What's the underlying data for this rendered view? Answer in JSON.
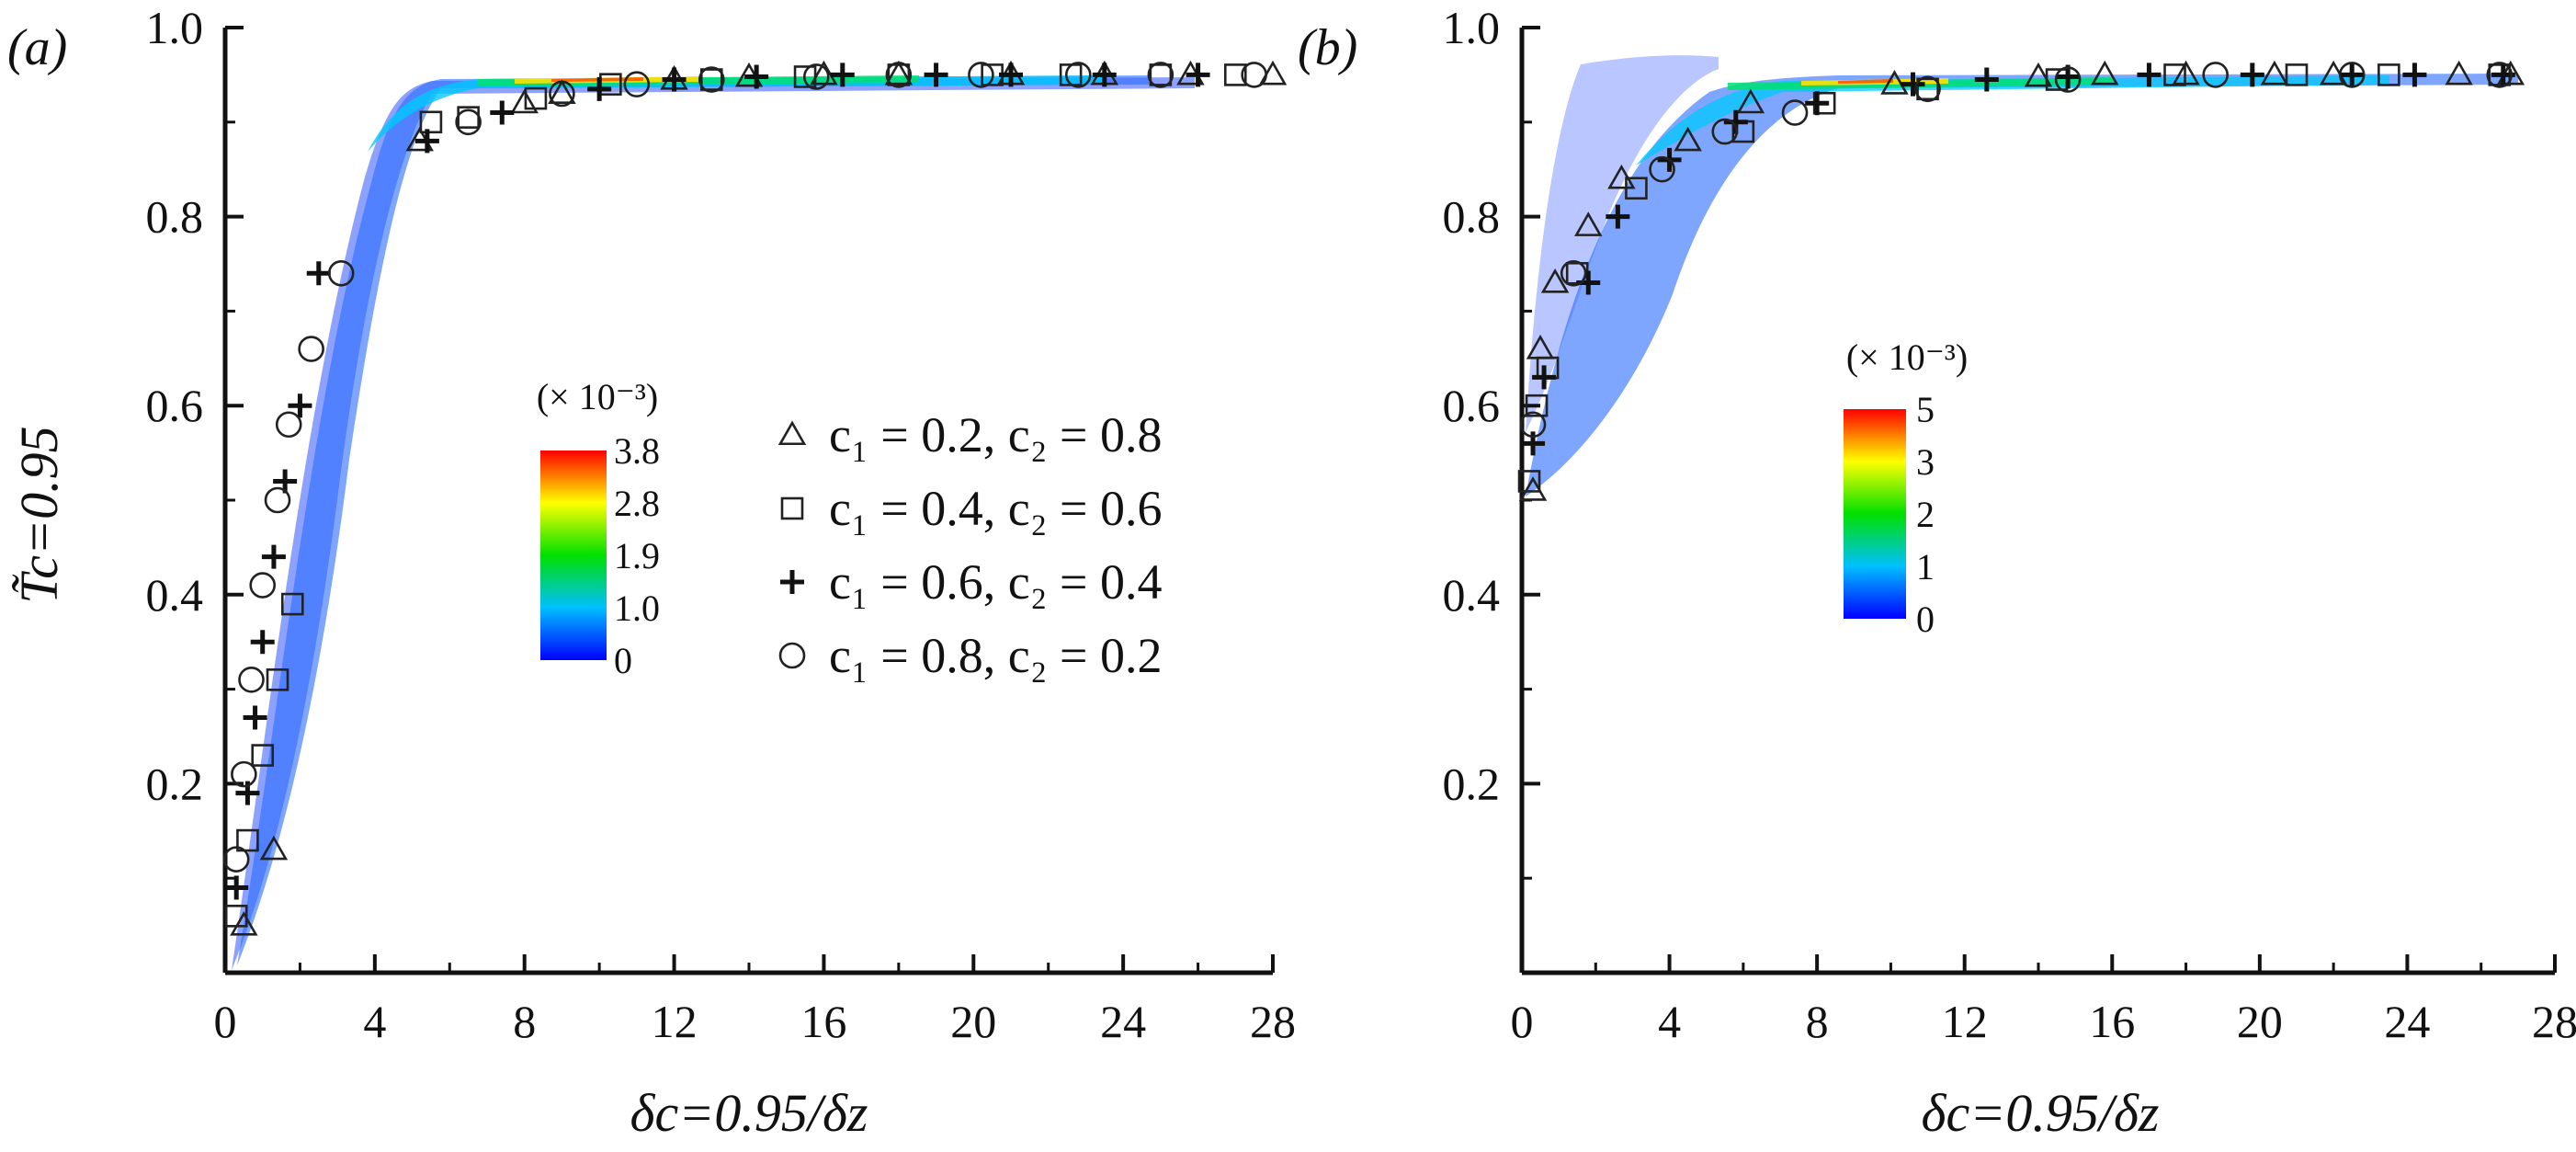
{
  "chart_data": [
    {
      "panel": "(a)",
      "type": "scatter",
      "xlabel": "δc=0.95/δz",
      "ylabel": "T̃c=0.95",
      "xlim": [
        0,
        28
      ],
      "ylim": [
        0,
        1.0
      ],
      "xticks": [
        0,
        4,
        8,
        12,
        16,
        20,
        24,
        28
      ],
      "yticks": [
        0.2,
        0.4,
        0.6,
        0.8,
        1.0
      ],
      "xtick_labels": [
        "0",
        "4",
        "8",
        "12",
        "16",
        "20",
        "24",
        "28"
      ],
      "ytick_labels": [
        "0.2",
        "0.4",
        "0.6",
        "0.8",
        "1.0"
      ],
      "colorbar": {
        "title": "(× 10⁻³)",
        "labels": [
          "3.8",
          "2.8",
          "1.9",
          "1.0",
          "0"
        ]
      },
      "legend": [
        {
          "marker": "triangle",
          "label": "c₁ = 0.2, c₂ = 0.8"
        },
        {
          "marker": "square",
          "label": "c₁ = 0.4, c₂ = 0.6"
        },
        {
          "marker": "plus",
          "label": "c₁ = 0.6, c₂ = 0.4"
        },
        {
          "marker": "circle",
          "label": "c₁ = 0.8, c₂ = 0.2"
        }
      ],
      "series": [
        {
          "name": "c1=0.2, c2=0.8",
          "marker": "triangle",
          "x": [
            0.5,
            1.3,
            5.2,
            8.0,
            9.0,
            12.0,
            14.0,
            16.0,
            18.0,
            21.0,
            23.5,
            25.8,
            28.0
          ],
          "y": [
            0.05,
            0.13,
            0.88,
            0.92,
            0.93,
            0.945,
            0.948,
            0.95,
            0.95,
            0.95,
            0.95,
            0.95,
            0.95
          ]
        },
        {
          "name": "c1=0.4, c2=0.6",
          "marker": "square",
          "x": [
            0.3,
            0.6,
            1.0,
            1.4,
            1.8,
            5.5,
            6.5,
            8.3,
            10.3,
            13.0,
            15.5,
            18.0,
            20.5,
            22.6,
            25.0,
            27.0
          ],
          "y": [
            0.06,
            0.14,
            0.23,
            0.31,
            0.39,
            0.9,
            0.905,
            0.925,
            0.94,
            0.945,
            0.948,
            0.95,
            0.95,
            0.95,
            0.95,
            0.95
          ]
        },
        {
          "name": "c1=0.6, c2=0.4",
          "marker": "plus",
          "x": [
            0.3,
            0.6,
            0.8,
            1.0,
            1.3,
            1.6,
            2.0,
            2.5,
            5.4,
            7.4,
            10.0,
            12.0,
            14.2,
            16.5,
            19.0,
            21.0,
            23.5,
            26.0
          ],
          "y": [
            0.09,
            0.19,
            0.27,
            0.35,
            0.44,
            0.52,
            0.6,
            0.74,
            0.88,
            0.91,
            0.935,
            0.945,
            0.948,
            0.95,
            0.95,
            0.95,
            0.95,
            0.95
          ]
        },
        {
          "name": "c1=0.8, c2=0.2",
          "marker": "circle",
          "x": [
            0.3,
            0.5,
            0.7,
            1.0,
            1.4,
            1.7,
            2.3,
            3.1,
            6.5,
            9.0,
            11.0,
            13.0,
            15.8,
            18.0,
            20.2,
            22.8,
            25.0,
            27.5
          ],
          "y": [
            0.12,
            0.21,
            0.31,
            0.41,
            0.5,
            0.58,
            0.66,
            0.74,
            0.9,
            0.93,
            0.94,
            0.945,
            0.948,
            0.95,
            0.95,
            0.95,
            0.95,
            0.95
          ]
        }
      ]
    },
    {
      "panel": "(b)",
      "type": "scatter",
      "xlabel": "δc=0.95/δz",
      "ylabel": "",
      "xlim": [
        0,
        28
      ],
      "ylim": [
        0,
        1.0
      ],
      "xticks": [
        0,
        4,
        8,
        12,
        16,
        20,
        24,
        28
      ],
      "yticks": [
        0.2,
        0.4,
        0.6,
        0.8,
        1.0
      ],
      "xtick_labels": [
        "0",
        "4",
        "8",
        "12",
        "16",
        "20",
        "24",
        "28"
      ],
      "ytick_labels": [
        "0.2",
        "0.4",
        "0.6",
        "0.8",
        "1.0"
      ],
      "colorbar": {
        "title": "(× 10⁻³)",
        "labels": [
          "5",
          "3",
          "2",
          "1",
          "0"
        ]
      },
      "series": [
        {
          "name": "c1=0.2, c2=0.8",
          "marker": "triangle",
          "x": [
            0.3,
            0.5,
            0.9,
            1.8,
            2.7,
            4.5,
            6.2,
            10.1,
            14.0,
            15.8,
            18.0,
            20.4,
            22.0,
            25.4,
            26.8
          ],
          "y": [
            0.51,
            0.66,
            0.73,
            0.79,
            0.84,
            0.88,
            0.92,
            0.94,
            0.948,
            0.95,
            0.95,
            0.95,
            0.95,
            0.95,
            0.95
          ]
        },
        {
          "name": "c1=0.4, c2=0.6",
          "marker": "square",
          "x": [
            0.2,
            0.4,
            0.7,
            1.5,
            3.1,
            6.0,
            8.2,
            11.0,
            14.5,
            17.7,
            21.0,
            23.5,
            26.5
          ],
          "y": [
            0.52,
            0.6,
            0.64,
            0.74,
            0.83,
            0.89,
            0.92,
            0.935,
            0.945,
            0.95,
            0.95,
            0.95,
            0.95
          ]
        },
        {
          "name": "c1=0.6, c2=0.4",
          "marker": "plus",
          "x": [
            0.3,
            0.6,
            1.8,
            2.6,
            4.0,
            5.8,
            8.0,
            10.6,
            12.6,
            14.8,
            17.0,
            19.8,
            22.5,
            24.2,
            26.6
          ],
          "y": [
            0.56,
            0.63,
            0.73,
            0.8,
            0.86,
            0.9,
            0.92,
            0.94,
            0.945,
            0.948,
            0.95,
            0.95,
            0.95,
            0.95,
            0.95
          ]
        },
        {
          "name": "c1=0.8, c2=0.2",
          "marker": "circle",
          "x": [
            0.3,
            1.4,
            3.8,
            5.5,
            7.4,
            11.0,
            14.8,
            18.8,
            22.5,
            26.5
          ],
          "y": [
            0.58,
            0.74,
            0.85,
            0.89,
            0.91,
            0.935,
            0.945,
            0.95,
            0.95,
            0.95
          ]
        }
      ]
    }
  ]
}
